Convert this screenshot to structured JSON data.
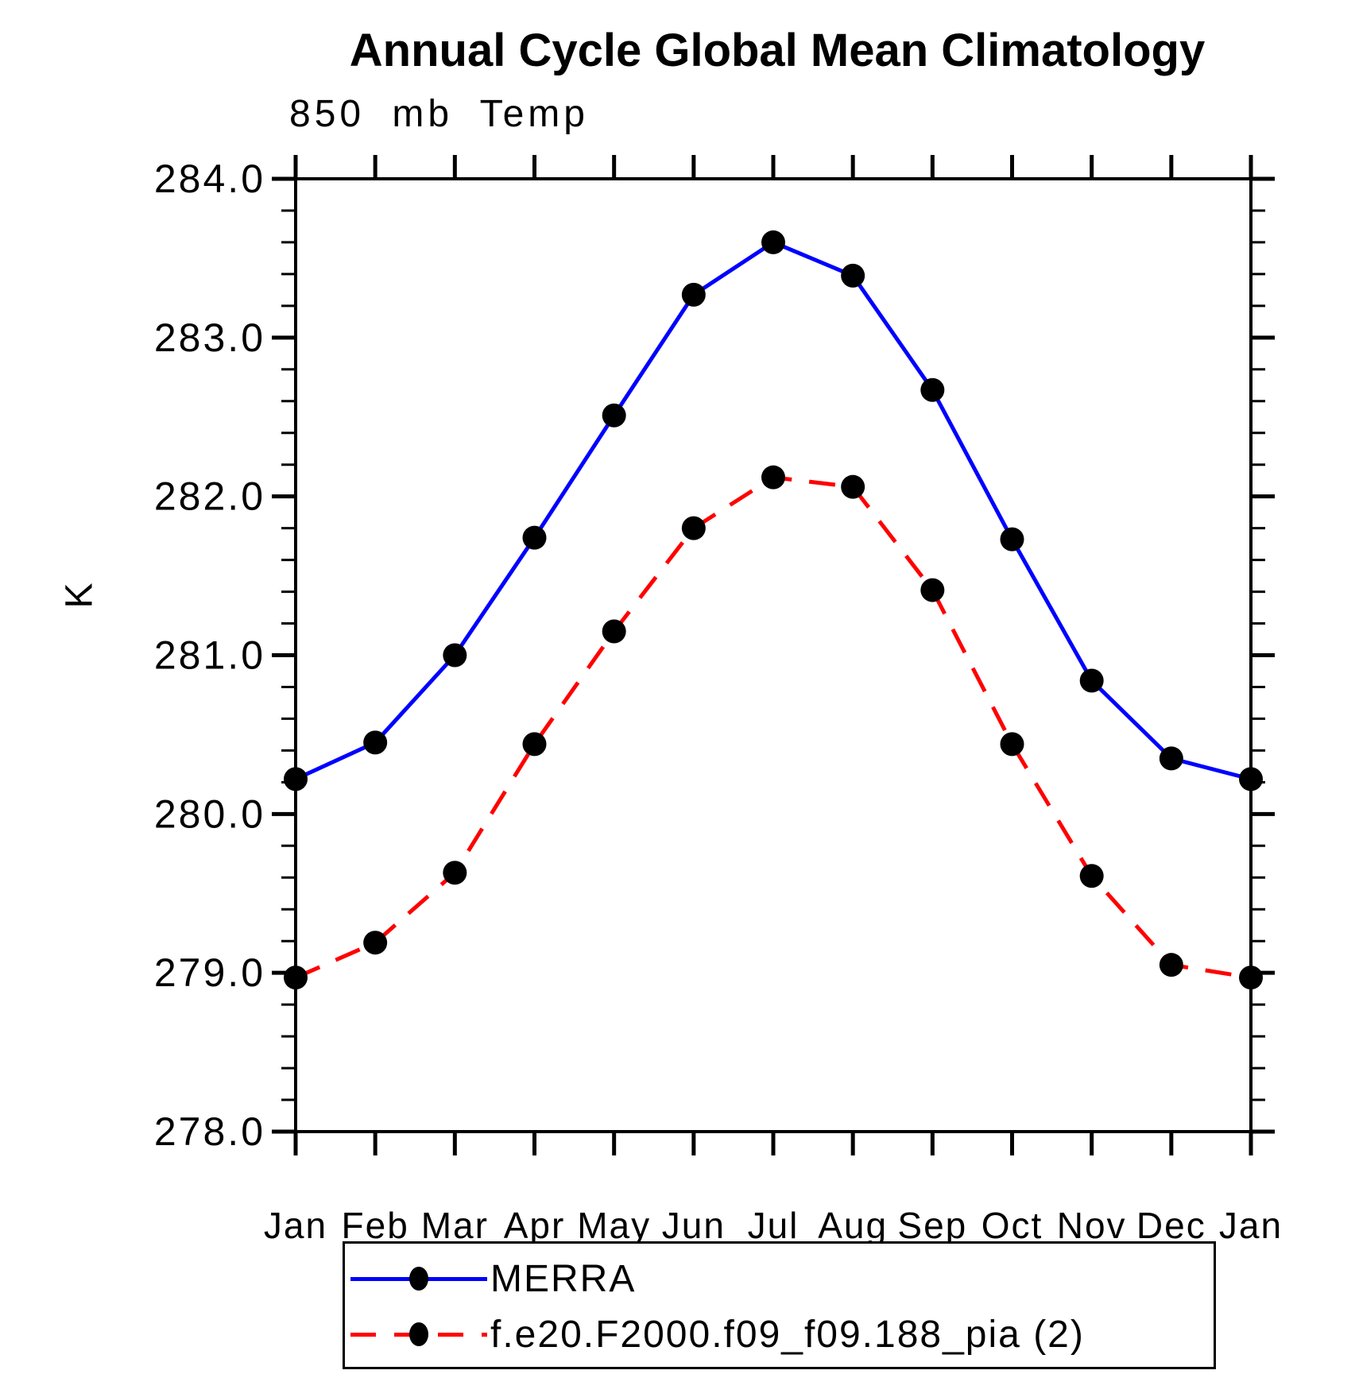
{
  "title": "Annual Cycle Global Mean Climatology",
  "subtitle": "850 mb Temp",
  "ylabel": "K",
  "colors": {
    "axis": "#000000",
    "marker": "#000000",
    "background": "#ffffff"
  },
  "legend": {
    "position": "bottom"
  },
  "chart_data": {
    "type": "line",
    "x_categories": [
      "Jan",
      "Feb",
      "Mar",
      "Apr",
      "May",
      "Jun",
      "Jul",
      "Aug",
      "Sep",
      "Oct",
      "Nov",
      "Dec",
      "Jan"
    ],
    "xlabel": "",
    "ylabel": "K",
    "ylim": [
      278.0,
      284.0
    ],
    "ytick_values": [
      284.0,
      283.0,
      282.0,
      281.0,
      280.0,
      279.0,
      278.0
    ],
    "ytick_labels": [
      "284.0",
      "283.0",
      "282.0",
      "281.0",
      "280.0",
      "279.0",
      "278.0"
    ],
    "yminor_interval": 0.2,
    "grid": false,
    "legend_position": "bottom",
    "series": [
      {
        "name": "MERRA",
        "color": "#0000ff",
        "style": "solid",
        "marker": "filled-circle",
        "marker_color": "#000000",
        "values": [
          280.22,
          280.45,
          281.0,
          281.74,
          282.51,
          283.27,
          283.6,
          283.39,
          282.67,
          281.73,
          280.84,
          280.35,
          280.22
        ]
      },
      {
        "name": "f.e20.F2000.f09_f09.188_pia (2)",
        "color": "#ff0000",
        "style": "dashed",
        "marker": "filled-circle",
        "marker_color": "#000000",
        "values": [
          278.97,
          279.19,
          279.63,
          280.44,
          281.15,
          281.8,
          282.12,
          282.06,
          281.41,
          280.44,
          279.61,
          279.05,
          278.97
        ]
      }
    ]
  }
}
